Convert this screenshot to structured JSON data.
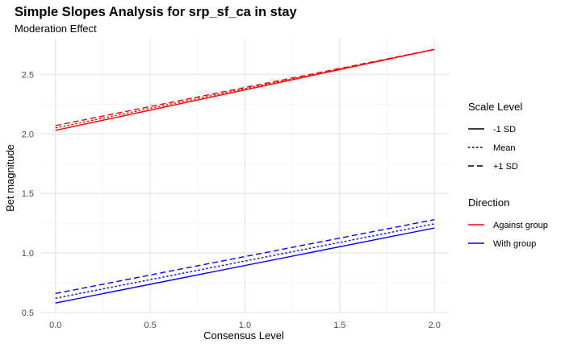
{
  "chart_data": {
    "type": "line",
    "title": "Simple Slopes Analysis for srp_sf_ca in stay",
    "subtitle": "Moderation Effect",
    "xlabel": "Consensus Level",
    "ylabel": "Bet magnitude",
    "xlim": [
      -0.08,
      2.08
    ],
    "ylim": [
      0.5,
      2.8
    ],
    "x_ticks": [
      0.0,
      0.5,
      1.0,
      1.5,
      2.0
    ],
    "x_tick_labels": [
      "0.0",
      "0.5",
      "1.0",
      "1.5",
      "2.0"
    ],
    "y_ticks": [
      0.5,
      1.0,
      1.5,
      2.0,
      2.5
    ],
    "y_tick_labels": [
      "0.5",
      "1.0",
      "1.5",
      "2.0",
      "2.5"
    ],
    "grid": true,
    "legend_position": "right",
    "legends": [
      {
        "title": "Scale Level",
        "kind": "linetype",
        "items": [
          {
            "label": "-1 SD",
            "linetype": "solid"
          },
          {
            "label": "Mean",
            "linetype": "dotted"
          },
          {
            "label": "+1 SD",
            "linetype": "dashed"
          }
        ]
      },
      {
        "title": "Direction",
        "kind": "color",
        "items": [
          {
            "label": "Against group",
            "color": "#ff0000"
          },
          {
            "label": "With group",
            "color": "#0000ff"
          }
        ]
      }
    ],
    "series": [
      {
        "direction": "Against group",
        "scale": "-1 SD",
        "linetype": "solid",
        "color": "#ff0000",
        "x": [
          0,
          2
        ],
        "y": [
          2.03,
          2.71
        ]
      },
      {
        "direction": "Against group",
        "scale": "Mean",
        "linetype": "dotted",
        "color": "#ff0000",
        "x": [
          0,
          2
        ],
        "y": [
          2.05,
          2.71
        ]
      },
      {
        "direction": "Against group",
        "scale": "+1 SD",
        "linetype": "dashed",
        "color": "#ff0000",
        "x": [
          0,
          2
        ],
        "y": [
          2.07,
          2.71
        ]
      },
      {
        "direction": "With group",
        "scale": "-1 SD",
        "linetype": "solid",
        "color": "#0000ff",
        "x": [
          0,
          2
        ],
        "y": [
          0.58,
          1.21
        ]
      },
      {
        "direction": "With group",
        "scale": "Mean",
        "linetype": "dotted",
        "color": "#0000ff",
        "x": [
          0,
          2
        ],
        "y": [
          0.62,
          1.245
        ]
      },
      {
        "direction": "With group",
        "scale": "+1 SD",
        "linetype": "dashed",
        "color": "#0000ff",
        "x": [
          0,
          2
        ],
        "y": [
          0.66,
          1.28
        ]
      }
    ]
  }
}
